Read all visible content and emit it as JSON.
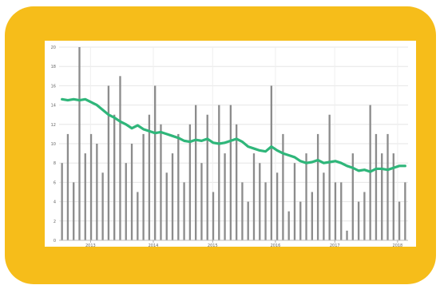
{
  "chart_data": {
    "type": "bar+line",
    "ylim": [
      0,
      20
    ],
    "yticks": [
      0,
      2,
      4,
      6,
      8,
      10,
      12,
      14,
      16,
      18,
      20
    ],
    "x_ticks": [
      "2013",
      "2014",
      "2015",
      "2016",
      "2017",
      "2018"
    ],
    "grid": true,
    "colors": {
      "bars": "#8c8c8c",
      "line": "#2fb67a",
      "card": "#f6bd1a"
    },
    "series": [
      {
        "type": "bar",
        "values": [
          8,
          11,
          6,
          20,
          9,
          11,
          10,
          7,
          16,
          13,
          17,
          8,
          10,
          5,
          11,
          13,
          16,
          12,
          7,
          9,
          11,
          6,
          12,
          14,
          8,
          13,
          5,
          14,
          9,
          14,
          12,
          6,
          4,
          9,
          8,
          6,
          16,
          7,
          11,
          3,
          8,
          4,
          9,
          5,
          11,
          7,
          13,
          6,
          6,
          1,
          9,
          4,
          5,
          14,
          11,
          9,
          11,
          9,
          4,
          6
        ]
      },
      {
        "type": "line",
        "values": [
          14.6,
          14.5,
          14.6,
          14.5,
          14.6,
          14.3,
          14.0,
          13.5,
          13.0,
          12.7,
          12.3,
          12.0,
          11.6,
          11.9,
          11.5,
          11.3,
          11.1,
          11.2,
          11.0,
          10.8,
          10.6,
          10.3,
          10.2,
          10.4,
          10.3,
          10.5,
          10.1,
          10.0,
          10.1,
          10.3,
          10.5,
          10.2,
          9.7,
          9.5,
          9.3,
          9.2,
          9.7,
          9.3,
          9.0,
          8.8,
          8.6,
          8.2,
          8.0,
          8.1,
          8.3,
          8.0,
          8.1,
          8.2,
          8.0,
          7.7,
          7.5,
          7.2,
          7.3,
          7.1,
          7.4,
          7.4,
          7.3,
          7.5,
          7.7,
          7.7
        ]
      }
    ]
  }
}
